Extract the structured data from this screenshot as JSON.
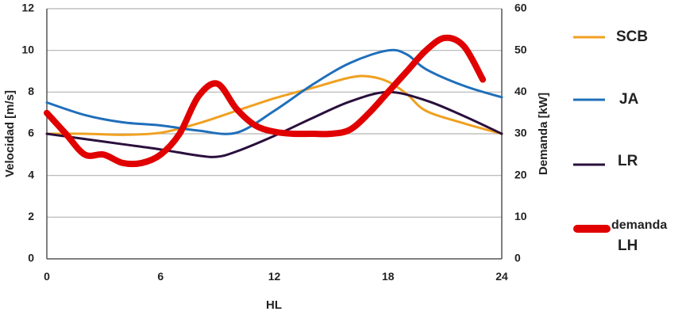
{
  "chart_data": {
    "type": "line",
    "xlabel": "HL",
    "ylabel": "Velocidad [m/s]",
    "y2label": "Demanda [kW]",
    "xlim": [
      0,
      24
    ],
    "ylim": [
      0,
      12
    ],
    "y2lim": [
      0,
      60
    ],
    "x_ticks": [
      0,
      6,
      12,
      18,
      24
    ],
    "y_ticks": [
      0,
      2,
      4,
      6,
      8,
      10,
      12
    ],
    "y2_ticks": [
      0,
      10,
      20,
      30,
      40,
      50,
      60
    ],
    "grid": "horizontal",
    "legend_position": "right",
    "series": [
      {
        "name": "SCB",
        "axis": "left",
        "color": "#f0a020",
        "x": [
          0,
          2,
          4,
          6,
          8,
          10,
          12,
          14,
          16,
          17,
          18,
          19,
          20,
          22,
          24
        ],
        "y": [
          6.0,
          6.0,
          5.95,
          6.05,
          6.5,
          7.1,
          7.7,
          8.2,
          8.7,
          8.75,
          8.5,
          7.9,
          7.1,
          6.5,
          6.0
        ]
      },
      {
        "name": "JA",
        "axis": "left",
        "color": "#1f6fba",
        "x": [
          0,
          2,
          4,
          6,
          8,
          10,
          12,
          14,
          16,
          18,
          19,
          20,
          22,
          24
        ],
        "y": [
          7.5,
          6.9,
          6.55,
          6.4,
          6.15,
          6.05,
          7.1,
          8.35,
          9.4,
          10.0,
          9.8,
          9.1,
          8.3,
          7.75
        ]
      },
      {
        "name": "LR",
        "axis": "left",
        "color": "#2a0f3d",
        "x": [
          0,
          2,
          4,
          6,
          8,
          9,
          10,
          12,
          14,
          16,
          18,
          20,
          22,
          24
        ],
        "y": [
          6.0,
          5.75,
          5.5,
          5.25,
          4.95,
          4.9,
          5.15,
          5.9,
          6.75,
          7.55,
          8.0,
          7.6,
          6.85,
          6.0
        ]
      },
      {
        "name": "demanda LH",
        "axis": "right",
        "color": "#e00000",
        "x": [
          0,
          1,
          2,
          3,
          4,
          5,
          6,
          7,
          8,
          9,
          10,
          11,
          12,
          13,
          14,
          15,
          16,
          17,
          18,
          19,
          20,
          21,
          22,
          23
        ],
        "y": [
          35,
          30,
          25,
          25,
          23,
          23,
          25,
          30,
          39,
          42,
          36,
          32,
          30.5,
          30,
          30,
          30,
          31,
          35,
          40,
          45,
          50,
          53,
          51,
          43
        ]
      }
    ],
    "legend": [
      {
        "label": "SCB"
      },
      {
        "label": "JA"
      },
      {
        "label": "LR"
      },
      {
        "label_line1": "demanda",
        "label_line2": "LH"
      }
    ]
  }
}
